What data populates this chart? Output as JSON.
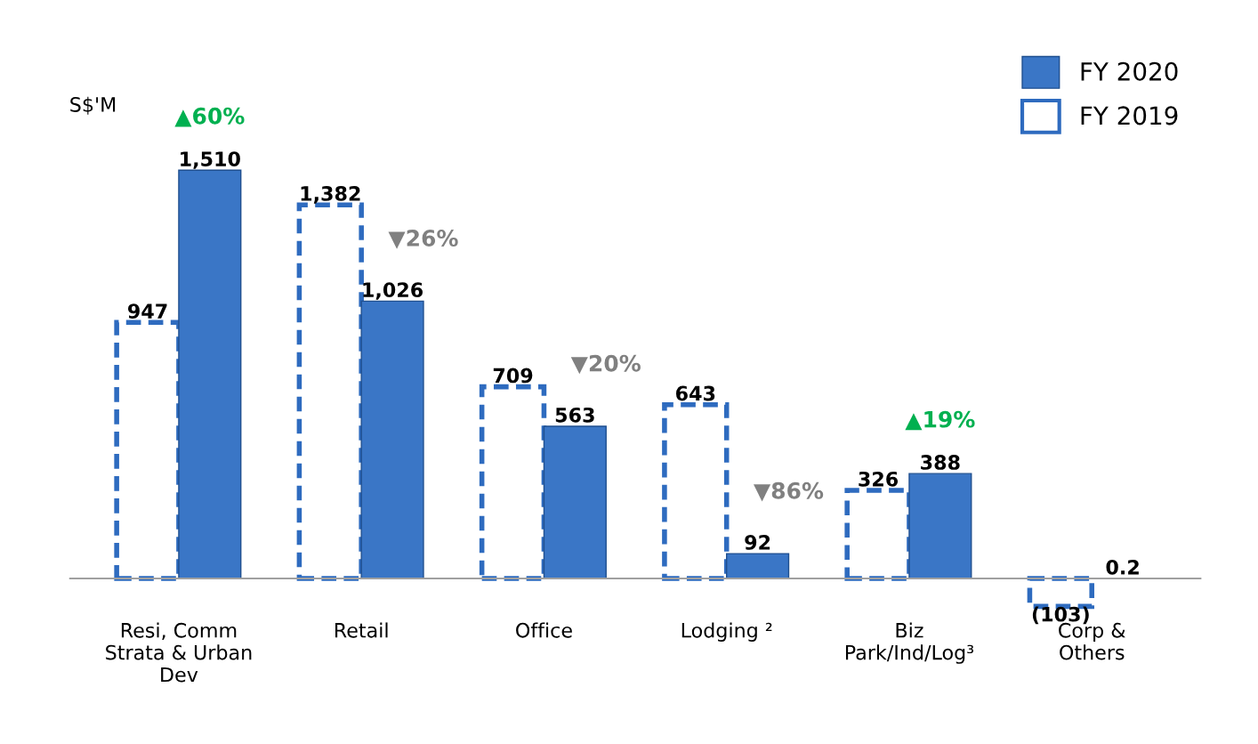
{
  "chart_data": {
    "type": "bar",
    "ylabel": "S$'M",
    "categories": [
      "Resi, Comm\nStrata & Urban\nDev",
      "Retail",
      "Office",
      "Lodging ²",
      "Biz\nPark/Ind/Log³",
      "Corp &\nOthers"
    ],
    "series": [
      {
        "name": "FY 2019",
        "color": "#2e6bbf",
        "line_style": "dashed",
        "values": [
          947,
          1382,
          709,
          643,
          326,
          -103
        ],
        "value_labels": [
          "947",
          "1,382",
          "709",
          "643",
          "326",
          "(103)"
        ]
      },
      {
        "name": "FY 2020",
        "color": "#3a76c6",
        "values": [
          1510,
          1026,
          563,
          92,
          388,
          0.2
        ],
        "value_labels": [
          "1,510",
          "1,026",
          "563",
          "92",
          "388",
          "0.2"
        ]
      }
    ],
    "annotations": [
      "▲60%",
      "▼26%",
      "▼20%",
      "▼86%",
      "▲19%"
    ],
    "legend": "top right",
    "tick_labels": "x",
    "grid": false
  }
}
